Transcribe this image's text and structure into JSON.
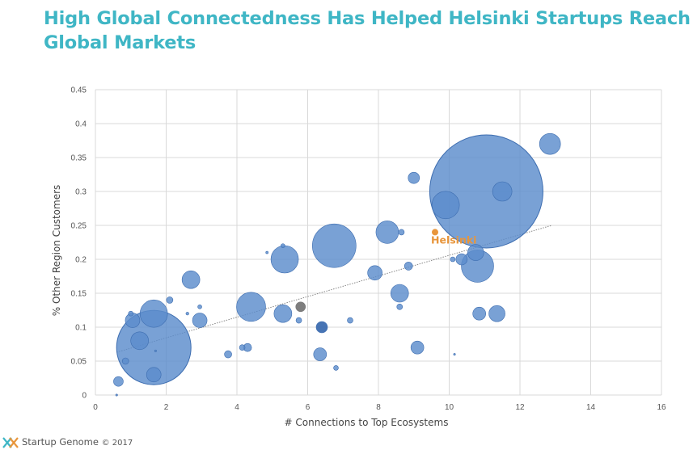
{
  "title": "High Global Connectedness Has Helped Helsinki Startups Reach Global Markets",
  "footer": {
    "brand": "Startup Genome",
    "copyright": "© 2017"
  },
  "colors": {
    "title": "#3fb6c5",
    "bubble": "#5b8ccc",
    "bubble_stroke": "#3d6db0",
    "highlight": "#e8963c",
    "trend": "#888888",
    "grid": "#d9d9d9"
  },
  "chart_data": {
    "type": "scatter",
    "subtype": "bubble",
    "xlabel": "# Connections to Top Ecosystems",
    "ylabel": "% Other Region Customers",
    "xlim": [
      0,
      16
    ],
    "ylim": [
      0,
      0.45
    ],
    "xticks": [
      "0",
      "2",
      "4",
      "6",
      "8",
      "10",
      "12",
      "14",
      "16"
    ],
    "yticks": [
      "0",
      "0.05",
      "0.1",
      "0.15",
      "0.2",
      "0.25",
      "0.3",
      "0.35",
      "0.4",
      "0.45"
    ],
    "grid": true,
    "trendline": {
      "from": [
        0.6,
        0.063
      ],
      "to": [
        12.9,
        0.25
      ]
    },
    "highlight": {
      "label": "Helsinki",
      "x": 9.6,
      "y": 0.24,
      "size": 4
    },
    "points": [
      {
        "x": 11.05,
        "y": 0.3,
        "size": 70
      },
      {
        "x": 1.65,
        "y": 0.07,
        "size": 46
      },
      {
        "x": 6.75,
        "y": 0.22,
        "size": 27
      },
      {
        "x": 10.8,
        "y": 0.19,
        "size": 20
      },
      {
        "x": 4.4,
        "y": 0.13,
        "size": 18
      },
      {
        "x": 5.35,
        "y": 0.2,
        "size": 17
      },
      {
        "x": 1.65,
        "y": 0.12,
        "size": 17
      },
      {
        "x": 9.9,
        "y": 0.28,
        "size": 17
      },
      {
        "x": 8.25,
        "y": 0.24,
        "size": 14
      },
      {
        "x": 12.85,
        "y": 0.37,
        "size": 13
      },
      {
        "x": 11.5,
        "y": 0.3,
        "size": 12
      },
      {
        "x": 2.7,
        "y": 0.17,
        "size": 11
      },
      {
        "x": 1.25,
        "y": 0.08,
        "size": 11
      },
      {
        "x": 5.3,
        "y": 0.12,
        "size": 11
      },
      {
        "x": 8.6,
        "y": 0.15,
        "size": 11
      },
      {
        "x": 10.75,
        "y": 0.21,
        "size": 10
      },
      {
        "x": 11.35,
        "y": 0.12,
        "size": 10
      },
      {
        "x": 1.05,
        "y": 0.11,
        "size": 9
      },
      {
        "x": 2.95,
        "y": 0.11,
        "size": 9
      },
      {
        "x": 7.9,
        "y": 0.18,
        "size": 9
      },
      {
        "x": 1.65,
        "y": 0.03,
        "size": 9
      },
      {
        "x": 10.85,
        "y": 0.12,
        "size": 8
      },
      {
        "x": 9.1,
        "y": 0.07,
        "size": 8
      },
      {
        "x": 6.35,
        "y": 0.06,
        "size": 8
      },
      {
        "x": 6.4,
        "y": 0.1,
        "size": 7,
        "color": "#3d6db0"
      },
      {
        "x": 10.35,
        "y": 0.2,
        "size": 7
      },
      {
        "x": 9.0,
        "y": 0.32,
        "size": 7
      },
      {
        "x": 5.8,
        "y": 0.13,
        "size": 6,
        "color": "#777777"
      },
      {
        "x": 0.65,
        "y": 0.02,
        "size": 6
      },
      {
        "x": 4.3,
        "y": 0.07,
        "size": 5
      },
      {
        "x": 8.85,
        "y": 0.19,
        "size": 5
      },
      {
        "x": 3.75,
        "y": 0.06,
        "size": 4.5
      },
      {
        "x": 2.1,
        "y": 0.14,
        "size": 4
      },
      {
        "x": 0.85,
        "y": 0.05,
        "size": 4
      },
      {
        "x": 5.75,
        "y": 0.11,
        "size": 3.5
      },
      {
        "x": 8.65,
        "y": 0.24,
        "size": 3.5
      },
      {
        "x": 8.6,
        "y": 0.13,
        "size": 3.5
      },
      {
        "x": 7.2,
        "y": 0.11,
        "size": 3.5
      },
      {
        "x": 4.15,
        "y": 0.07,
        "size": 3.5
      },
      {
        "x": 6.8,
        "y": 0.04,
        "size": 3
      },
      {
        "x": 1.0,
        "y": 0.12,
        "size": 3
      },
      {
        "x": 10.1,
        "y": 0.2,
        "size": 3
      },
      {
        "x": 5.3,
        "y": 0.22,
        "size": 2.5
      },
      {
        "x": 2.95,
        "y": 0.13,
        "size": 2.5
      },
      {
        "x": 2.6,
        "y": 0.12,
        "size": 1.8
      },
      {
        "x": 4.85,
        "y": 0.21,
        "size": 1.5
      },
      {
        "x": 10.15,
        "y": 0.06,
        "size": 1.2
      },
      {
        "x": 0.6,
        "y": 0.0,
        "size": 1.2
      },
      {
        "x": 1.7,
        "y": 0.065,
        "size": 1.2
      }
    ]
  }
}
